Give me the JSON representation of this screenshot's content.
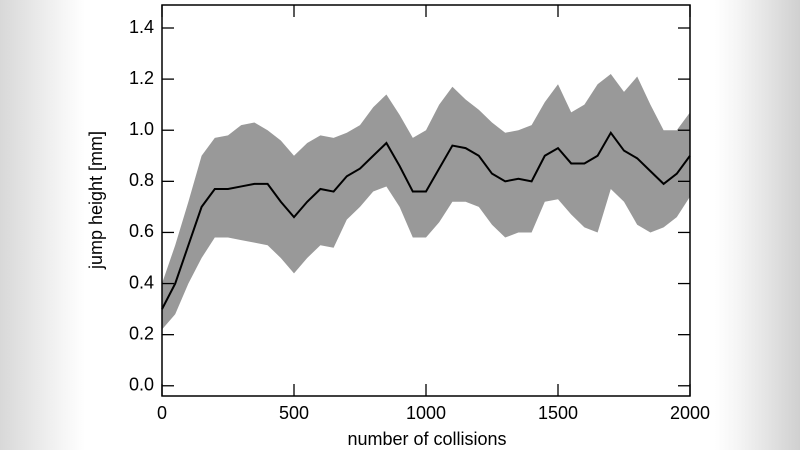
{
  "chart_data": {
    "type": "line",
    "xlabel": "number of collisions",
    "ylabel": "jump height [mm]",
    "x": [
      0,
      50,
      100,
      150,
      200,
      250,
      300,
      350,
      400,
      450,
      500,
      550,
      600,
      650,
      700,
      750,
      800,
      850,
      900,
      950,
      1000,
      1050,
      1100,
      1150,
      1200,
      1250,
      1300,
      1350,
      1400,
      1450,
      1500,
      1550,
      1600,
      1650,
      1700,
      1750,
      1800,
      1850,
      1900,
      1950,
      2000
    ],
    "series": [
      {
        "color": "#000000",
        "values": [
          0.3,
          0.4,
          0.55,
          0.7,
          0.77,
          0.77,
          0.78,
          0.79,
          0.79,
          0.72,
          0.66,
          0.72,
          0.77,
          0.76,
          0.82,
          0.85,
          0.9,
          0.95,
          0.86,
          0.76,
          0.76,
          0.85,
          0.94,
          0.93,
          0.9,
          0.83,
          0.8,
          0.81,
          0.8,
          0.9,
          0.93,
          0.87,
          0.87,
          0.9,
          0.99,
          0.92,
          0.89,
          0.84,
          0.79,
          0.83,
          0.9
        ]
      }
    ],
    "band": {
      "color": "#999999",
      "upper": [
        0.4,
        0.55,
        0.72,
        0.9,
        0.97,
        0.98,
        1.02,
        1.03,
        1.0,
        0.96,
        0.9,
        0.95,
        0.98,
        0.97,
        0.99,
        1.02,
        1.09,
        1.14,
        1.06,
        0.97,
        1.0,
        1.1,
        1.17,
        1.12,
        1.08,
        1.03,
        0.99,
        1.0,
        1.02,
        1.11,
        1.18,
        1.07,
        1.1,
        1.18,
        1.22,
        1.15,
        1.21,
        1.1,
        1.0,
        1.0,
        1.07
      ],
      "lower": [
        0.22,
        0.28,
        0.4,
        0.5,
        0.58,
        0.58,
        0.57,
        0.56,
        0.55,
        0.5,
        0.44,
        0.5,
        0.55,
        0.54,
        0.65,
        0.7,
        0.76,
        0.78,
        0.7,
        0.58,
        0.58,
        0.64,
        0.72,
        0.72,
        0.7,
        0.63,
        0.58,
        0.6,
        0.6,
        0.72,
        0.73,
        0.67,
        0.62,
        0.6,
        0.77,
        0.72,
        0.63,
        0.6,
        0.62,
        0.66,
        0.74
      ]
    },
    "xlim": [
      0,
      2000
    ],
    "xticks": [
      0,
      500,
      1000,
      1500,
      2000
    ],
    "ylim": [
      -0.04,
      1.49
    ],
    "yticks": [
      {
        "value": 0,
        "label": "0.0"
      },
      0.2,
      0.4,
      0.6,
      0.8,
      {
        "value": 1,
        "label": "1.0"
      },
      1.2,
      1.4
    ]
  }
}
